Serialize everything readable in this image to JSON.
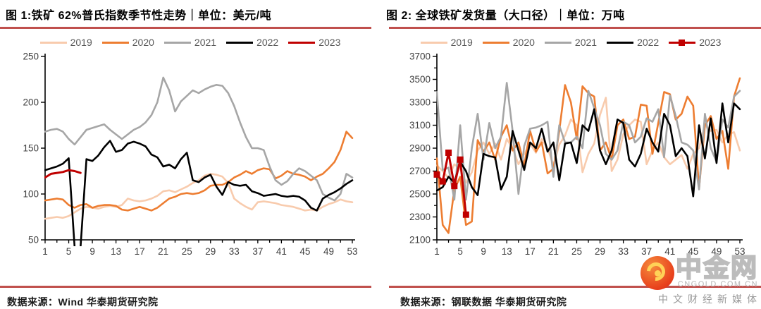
{
  "watermark": {
    "brand": "中金网",
    "domain": "CNGOLD.COM.CN",
    "tagline": "中文财经新媒体"
  },
  "colors": {
    "separator": "#C0504D",
    "axis": "#000000",
    "tick_label": "#404040",
    "legend_text": "#595959"
  },
  "chart_data": [
    {
      "type": "line",
      "title": "图 1:铁矿 62%普氏指数季节性走势｜单位：美元/吨",
      "source_label": "数据来源：Wind 华泰期货研究院",
      "xlim": [
        1,
        53
      ],
      "x_tick_labels": [
        1,
        5,
        9,
        13,
        17,
        21,
        25,
        29,
        33,
        37,
        41,
        45,
        49,
        53
      ],
      "ylim": [
        50,
        250
      ],
      "y_ticks": [
        50,
        100,
        150,
        200,
        250
      ],
      "y_minor_step": 0,
      "legend_position": "top",
      "grid": false,
      "series": [
        {
          "name": "2019",
          "color": "#F8CBAD",
          "width": 2.6,
          "values": [
            73,
            74,
            75,
            74,
            76,
            80,
            84,
            86,
            85,
            84,
            86,
            87,
            86,
            88,
            95,
            93,
            92,
            93,
            95,
            98,
            103,
            104,
            102,
            105,
            108,
            112,
            115,
            120,
            122,
            121,
            119,
            112,
            95,
            90,
            86,
            83,
            91,
            92,
            91,
            90,
            88,
            87,
            86,
            84,
            82,
            83,
            82,
            86,
            89,
            91,
            94,
            92,
            91
          ]
        },
        {
          "name": "2020",
          "color": "#ED7D31",
          "width": 2.6,
          "values": [
            93,
            94,
            95,
            94,
            88,
            85,
            88,
            89,
            85,
            87,
            88,
            88,
            87,
            83,
            82,
            84,
            86,
            84,
            82,
            85,
            90,
            95,
            97,
            100,
            101,
            100,
            101,
            104,
            109,
            110,
            110,
            113,
            118,
            121,
            125,
            122,
            126,
            128,
            127,
            117,
            120,
            125,
            122,
            121,
            119,
            115,
            119,
            122,
            128,
            135,
            148,
            168,
            161
          ]
        },
        {
          "name": "2021",
          "color": "#A6A6A6",
          "width": 2.6,
          "values": [
            168,
            170,
            171,
            168,
            160,
            154,
            162,
            170,
            172,
            174,
            176,
            170,
            165,
            160,
            165,
            170,
            173,
            178,
            186,
            200,
            227,
            213,
            190,
            201,
            207,
            213,
            210,
            214,
            217,
            219,
            218,
            210,
            196,
            178,
            162,
            150,
            150,
            148,
            130,
            115,
            110,
            114,
            122,
            128,
            125,
            120,
            115,
            100,
            96,
            93,
            100,
            122,
            118
          ]
        },
        {
          "name": "2022",
          "color": "#000000",
          "width": 2.6,
          "values": [
            126,
            128,
            130,
            133,
            139,
            42,
            42,
            138,
            136,
            142,
            151,
            158,
            146,
            148,
            155,
            157,
            155,
            152,
            143,
            140,
            130,
            132,
            128,
            138,
            145,
            115,
            113,
            118,
            121,
            108,
            99,
            113,
            110,
            109,
            110,
            103,
            101,
            98,
            99,
            100,
            98,
            97,
            98,
            97,
            93,
            85,
            82,
            95,
            99,
            102,
            106,
            111,
            115
          ]
        },
        {
          "name": "2023",
          "color": "#C00000",
          "width": 3,
          "values": [
            118,
            122,
            123,
            124,
            126,
            125,
            123
          ]
        }
      ]
    },
    {
      "type": "line",
      "title": "图 2: 全球铁矿发货量（大口径）｜单位：万吨",
      "source_label": "数据来源：钢联数据 华泰期货研究院",
      "xlim": [
        1,
        53
      ],
      "x_tick_labels": [
        1,
        5,
        9,
        13,
        17,
        21,
        25,
        29,
        33,
        37,
        41,
        45,
        49,
        53
      ],
      "ylim": [
        2100,
        3700
      ],
      "y_ticks": [
        2100,
        2300,
        2500,
        2700,
        2900,
        3100,
        3300,
        3500,
        3700
      ],
      "y_minor_step": 100,
      "legend_position": "top",
      "grid": false,
      "series": [
        {
          "name": "2019",
          "color": "#F8CBAD",
          "width": 2.6,
          "values": [
            2750,
            2700,
            2640,
            2760,
            2720,
            2600,
            2690,
            2880,
            2950,
            2850,
            2940,
            2800,
            2980,
            2900,
            2760,
            2850,
            2940,
            2860,
            2980,
            2900,
            2750,
            2930,
            3010,
            3150,
            3100,
            2690,
            2850,
            2940,
            3190,
            3340,
            2700,
            2800,
            3020,
            3100,
            3150,
            3130,
            2760,
            2880,
            2950,
            2820,
            2760,
            2800,
            2840,
            2720,
            2850,
            2900,
            3100,
            3050,
            3060,
            2950,
            3020,
            3040,
            2880
          ]
        },
        {
          "name": "2020",
          "color": "#ED7D31",
          "width": 2.6,
          "values": [
            2810,
            2230,
            2160,
            2540,
            2650,
            2230,
            2260,
            2970,
            2870,
            2950,
            2800,
            3000,
            3100,
            2880,
            2950,
            2750,
            3050,
            2870,
            2950,
            2680,
            2720,
            3050,
            3450,
            3300,
            2980,
            3440,
            3380,
            3350,
            2880,
            2950,
            2800,
            3100,
            3150,
            2980,
            3000,
            3280,
            3270,
            2850,
            3120,
            3390,
            3370,
            3150,
            3200,
            3350,
            3270,
            2550,
            3100,
            3180,
            2980,
            3050,
            2720,
            3350,
            3510
          ]
        },
        {
          "name": "2021",
          "color": "#A6A6A6",
          "width": 2.6,
          "values": [
            3390,
            2710,
            2730,
            2450,
            3100,
            2450,
            2900,
            3200,
            2800,
            3120,
            2900,
            3000,
            3470,
            3050,
            2500,
            2920,
            3070,
            3080,
            3100,
            3130,
            2650,
            3100,
            2950,
            2950,
            3000,
            2900,
            3400,
            3250,
            3100,
            2850,
            2800,
            2880,
            3130,
            3100,
            2950,
            3000,
            3160,
            3130,
            3240,
            2820,
            3360,
            3180,
            2950,
            2930,
            2880,
            2540,
            3200,
            2900,
            2780,
            3150,
            3080,
            3350,
            3400
          ]
        },
        {
          "name": "2022",
          "color": "#000000",
          "width": 2.6,
          "values": [
            2530,
            2560,
            2650,
            2600,
            2780,
            2700,
            2560,
            2490,
            2850,
            2830,
            2820,
            2540,
            2650,
            3050,
            2880,
            2710,
            2950,
            2900,
            3070,
            2870,
            2950,
            2620,
            2940,
            2950,
            2770,
            3100,
            3050,
            3240,
            2880,
            2760,
            2880,
            3150,
            3120,
            2800,
            2740,
            2850,
            3070,
            2950,
            2870,
            3200,
            3100,
            2830,
            2900,
            2830,
            2480,
            3100,
            2810,
            3160,
            2770,
            3290,
            2950,
            3290,
            3240
          ]
        },
        {
          "name": "2023",
          "color": "#C00000",
          "width": 3,
          "marker": "square",
          "values": [
            2670,
            2610,
            2860,
            2570,
            2800,
            2320
          ]
        }
      ]
    }
  ]
}
